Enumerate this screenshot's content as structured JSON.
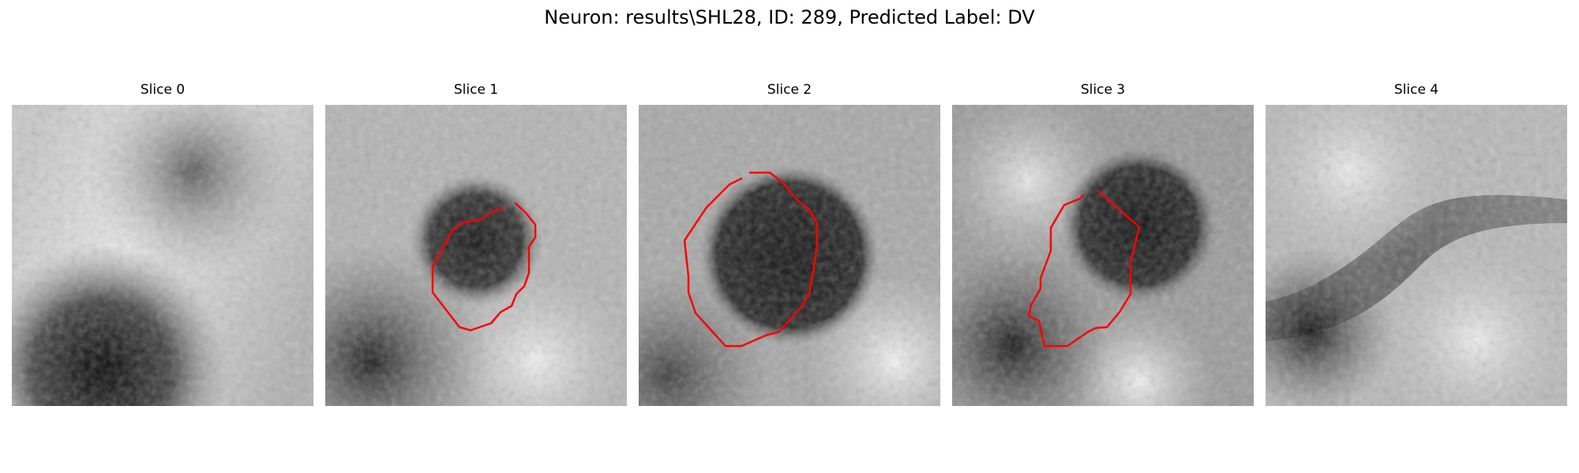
{
  "figure": {
    "title": "Neuron: results\\SHL28, ID: 289, Predicted Label: DV"
  },
  "panels": [
    {
      "title": "Slice 0",
      "has_contour": false
    },
    {
      "title": "Slice 1",
      "has_contour": true
    },
    {
      "title": "Slice 2",
      "has_contour": true
    },
    {
      "title": "Slice 3",
      "has_contour": true
    },
    {
      "title": "Slice 4",
      "has_contour": false
    }
  ],
  "colors": {
    "contour": "#ff0000",
    "background": "#ffffff"
  }
}
